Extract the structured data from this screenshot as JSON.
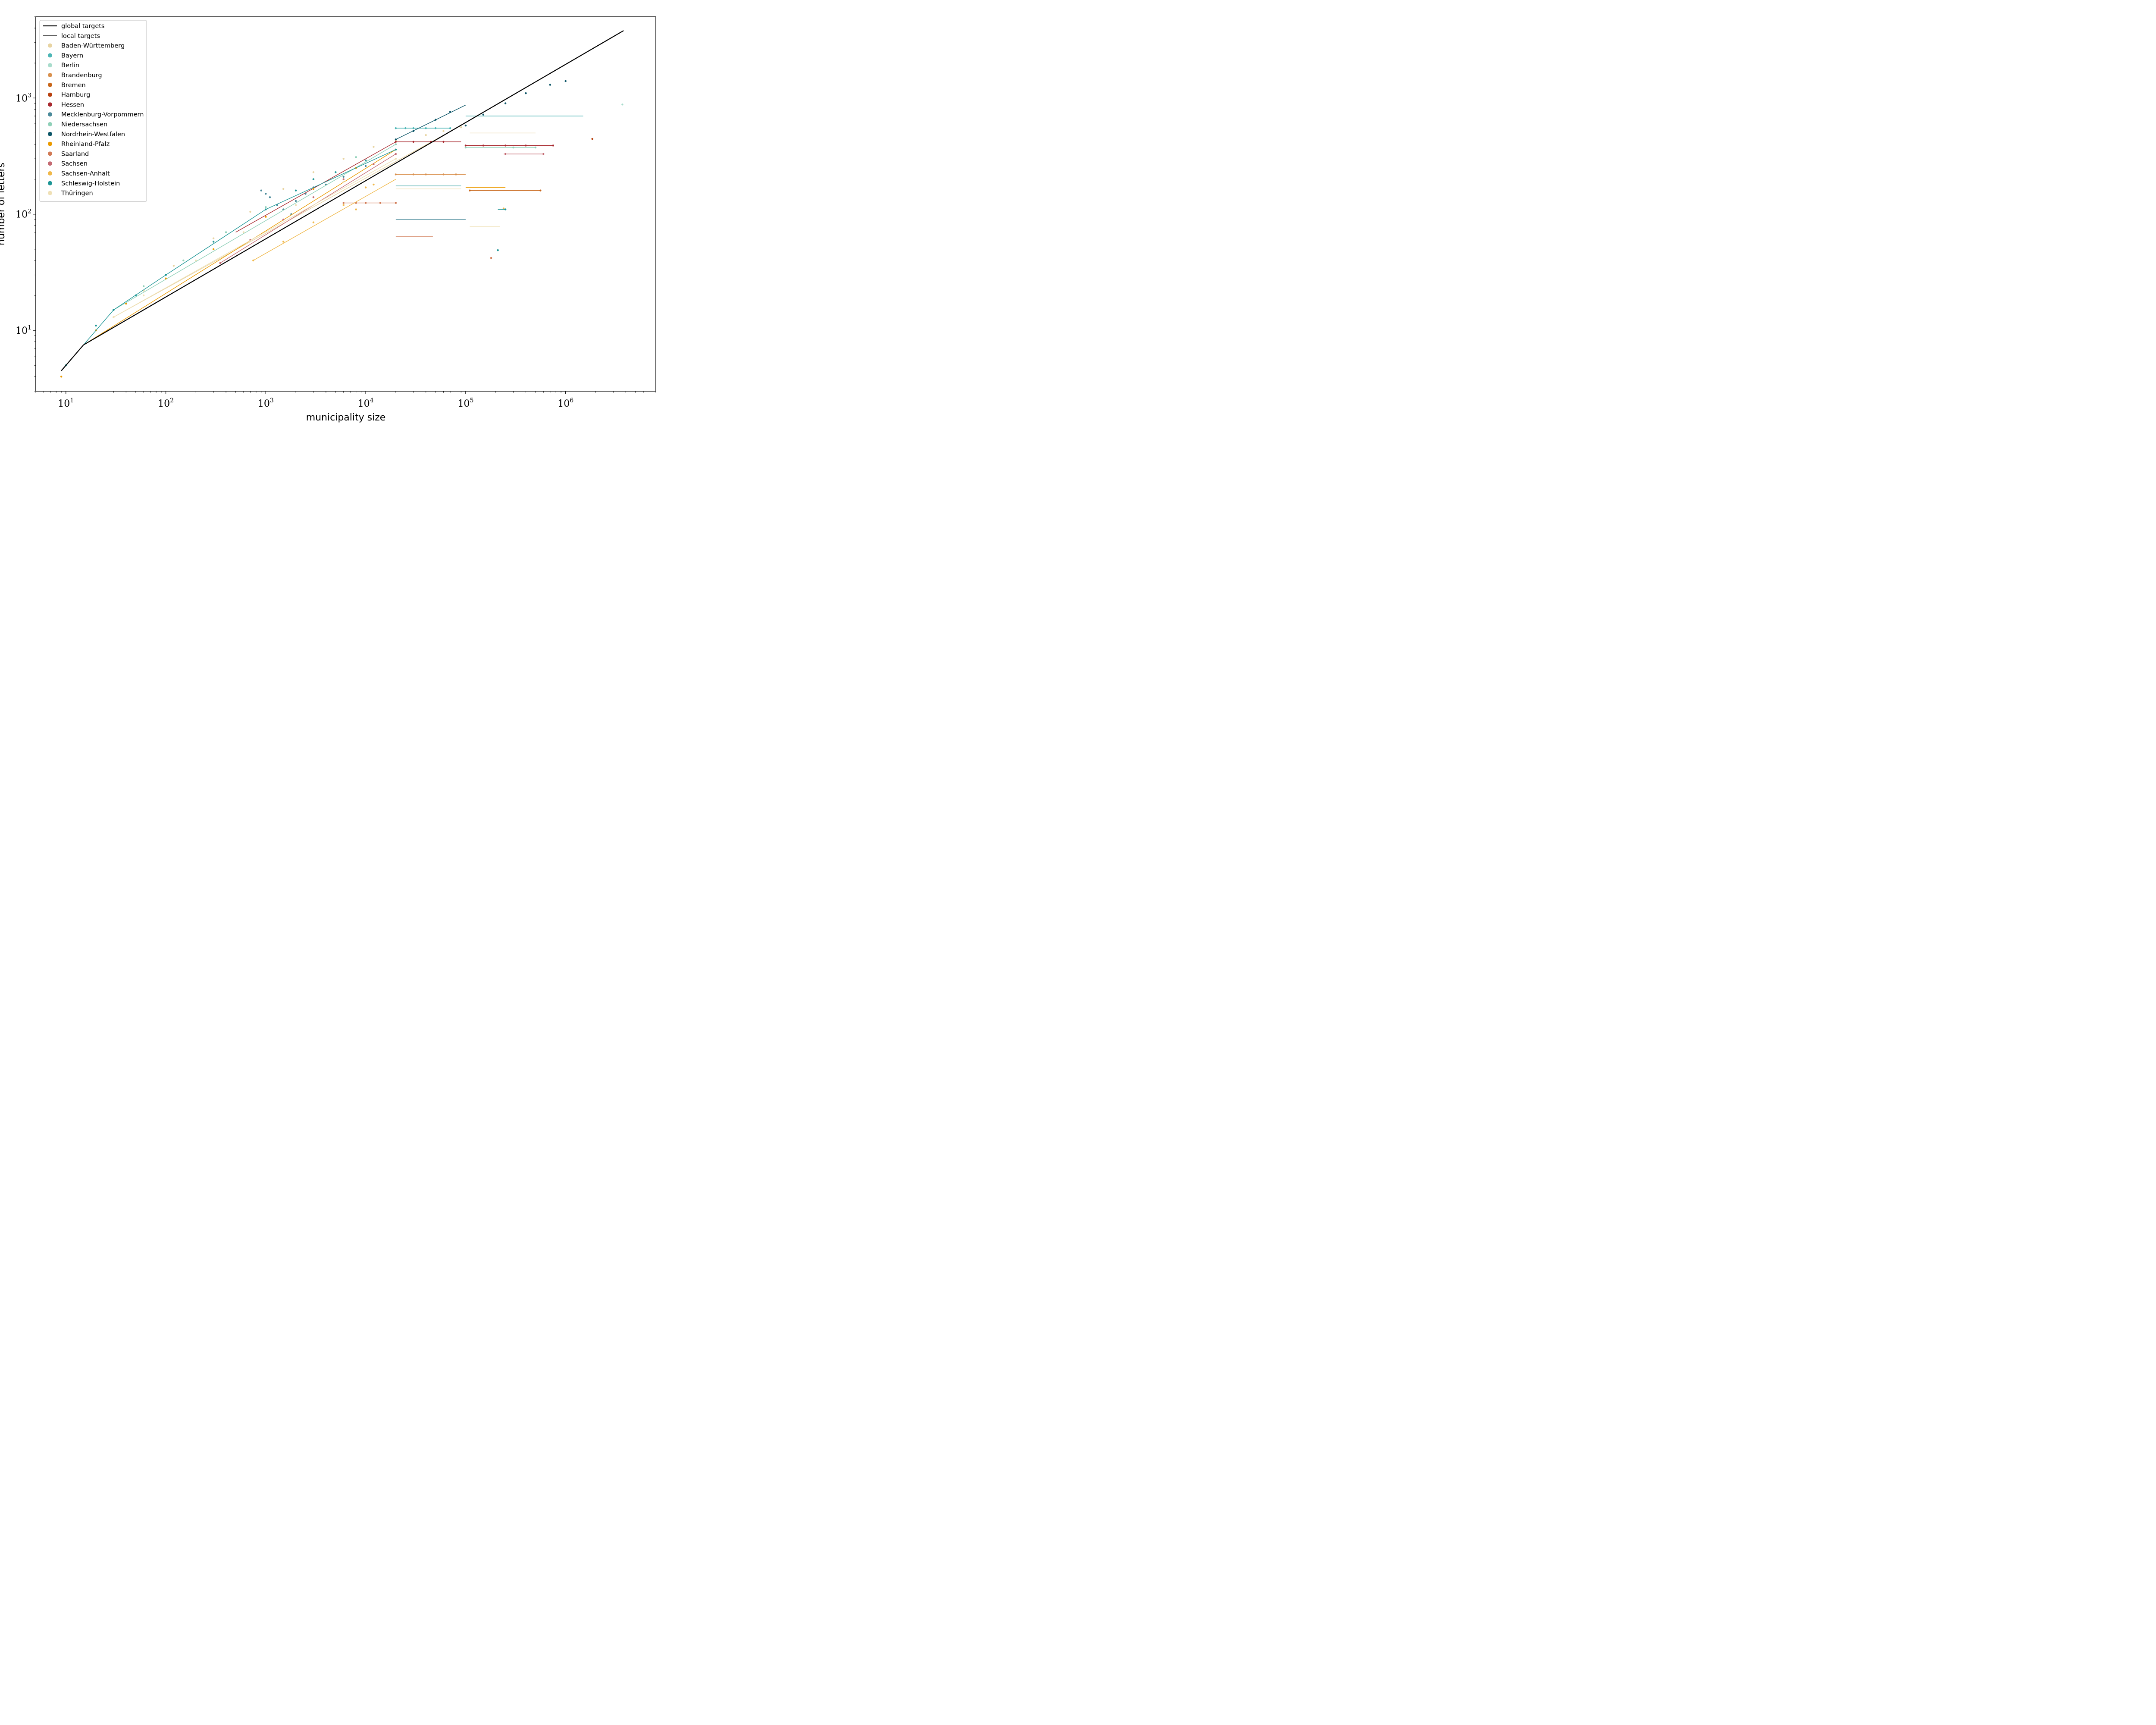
{
  "chart_data": {
    "type": "scatter",
    "title": "",
    "xlabel": "municipality size",
    "ylabel": "number of letters",
    "x_scale": "log",
    "y_scale": "log",
    "xlim": [
      5,
      8000000
    ],
    "ylim": [
      3,
      5000
    ],
    "x_ticks": [
      {
        "base": "10",
        "exp": "1",
        "value": 10
      },
      {
        "base": "10",
        "exp": "2",
        "value": 100
      },
      {
        "base": "10",
        "exp": "3",
        "value": 1000
      },
      {
        "base": "10",
        "exp": "4",
        "value": 10000
      },
      {
        "base": "10",
        "exp": "5",
        "value": 100000
      },
      {
        "base": "10",
        "exp": "6",
        "value": 1000000
      }
    ],
    "y_ticks": [
      {
        "base": "10",
        "exp": "1",
        "value": 10
      },
      {
        "base": "10",
        "exp": "2",
        "value": 100
      },
      {
        "base": "10",
        "exp": "3",
        "value": 1000
      }
    ],
    "grid": false,
    "legend_position": "top-left",
    "global_target": {
      "name": "global targets",
      "color": "#000000",
      "x": [
        9,
        15,
        3800000
      ],
      "y": [
        4.5,
        7.5,
        3800
      ]
    },
    "local_targets_label": "local targets",
    "series": [
      {
        "name": "Baden-Württemberg",
        "color": "#e8d4a2",
        "line": {
          "x": [
            30,
            90000
          ],
          "y": [
            13,
            580
          ]
        },
        "points": {
          "x": [
            30,
            60,
            120,
            300,
            700,
            1500,
            3000,
            6000,
            12000,
            20000,
            40000,
            60000,
            90000
          ],
          "y": [
            13,
            22,
            36,
            62,
            105,
            165,
            230,
            300,
            380,
            430,
            480,
            520,
            560
          ]
        },
        "steps": [
          {
            "y": 500,
            "x": [
              110000,
              500000
            ]
          }
        ]
      },
      {
        "name": "Bayern",
        "color": "#4db6b6",
        "points": {
          "x": [
            20000,
            25000,
            30000,
            40000,
            50000,
            70000
          ],
          "y": [
            550,
            550,
            550,
            550,
            550,
            550
          ]
        },
        "steps": [
          {
            "y": 550,
            "x": [
              20000,
              70000
            ]
          },
          {
            "y": 700,
            "x": [
              100000,
              1500000
            ]
          }
        ]
      },
      {
        "name": "Berlin",
        "color": "#a8dccc",
        "points": {
          "x": [
            3700000
          ],
          "y": [
            880
          ]
        }
      },
      {
        "name": "Brandenburg",
        "color": "#d9914f",
        "points": {
          "x": [
            20000,
            30000,
            40000,
            60000,
            80000
          ],
          "y": [
            220,
            220,
            220,
            220,
            220
          ]
        },
        "steps": [
          {
            "y": 220,
            "x": [
              20000,
              100000
            ]
          }
        ]
      },
      {
        "name": "Bremen",
        "color": "#c8661a",
        "points": {
          "x": [
            110000,
            560000
          ],
          "y": [
            160,
            160
          ]
        },
        "steps": [
          {
            "y": 160,
            "x": [
              110000,
              560000
            ]
          }
        ]
      },
      {
        "name": "Hamburg",
        "color": "#b8400e",
        "points": {
          "x": [
            1850000
          ],
          "y": [
            445
          ]
        }
      },
      {
        "name": "Hessen",
        "color": "#a8282e",
        "line": {
          "x": [
            500,
            20000
          ],
          "y": [
            70,
            420
          ]
        },
        "points": {
          "x": [
            20000,
            30000,
            45000,
            60000,
            100000,
            150000,
            250000,
            400000,
            750000
          ],
          "y": [
            420,
            420,
            420,
            420,
            390,
            390,
            390,
            390,
            390
          ]
        },
        "steps": [
          {
            "y": 420,
            "x": [
              20000,
              90000
            ]
          },
          {
            "y": 390,
            "x": [
              100000,
              760000
            ]
          }
        ]
      },
      {
        "name": "Mecklenburg-Vorpommern",
        "color": "#4a8a9a",
        "points": {
          "x": [
            900,
            1000,
            1100,
            1300,
            1500,
            1800,
            2000,
            2500,
            3000,
            4000,
            6000,
            10000
          ],
          "y": [
            160,
            150,
            140,
            120,
            110,
            100,
            130,
            150,
            170,
            180,
            210,
            260
          ]
        },
        "steps": [
          {
            "y": 90,
            "x": [
              20000,
              100000
            ]
          }
        ]
      },
      {
        "name": "Niedersachsen",
        "color": "#8fd0b8",
        "line": {
          "x": [
            30,
            20000
          ],
          "y": [
            15,
            400
          ]
        },
        "points": {
          "x": [
            30,
            60,
            150,
            400,
            1000,
            3000,
            8000,
            20000,
            100000,
            300000,
            500000
          ],
          "y": [
            15,
            24,
            40,
            70,
            115,
            200,
            310,
            400,
            375,
            375,
            375
          ]
        },
        "steps": [
          {
            "y": 375,
            "x": [
              100000,
              500000
            ]
          }
        ]
      },
      {
        "name": "Nordrhein-Westfalen",
        "color": "#0d5668",
        "line": {
          "x": [
            20000,
            100000
          ],
          "y": [
            440,
            870
          ]
        },
        "points": {
          "x": [
            20000,
            30000,
            50000,
            70000,
            100000,
            150000,
            250000,
            400000,
            700000,
            1000000
          ],
          "y": [
            440,
            520,
            650,
            760,
            580,
            720,
            900,
            1100,
            1300,
            1400
          ]
        },
        "steps": []
      },
      {
        "name": "Rheinland-Pfalz",
        "color": "#eb9a00",
        "line": {
          "x": [
            9,
            15,
            20000
          ],
          "y": [
            4.5,
            7.5,
            360
          ]
        },
        "points": {
          "x": [
            9,
            20,
            40,
            100,
            300,
            1000,
            3000,
            8000,
            20000
          ],
          "y": [
            4,
            10,
            17,
            28,
            50,
            95,
            165,
            250,
            360
          ]
        },
        "steps": [
          {
            "y": 170,
            "x": [
              100000,
              250000
            ]
          }
        ]
      },
      {
        "name": "Saarland",
        "color": "#d17a55",
        "points": {
          "x": [
            6000,
            8000,
            10000,
            14000,
            20000,
            180000
          ],
          "y": [
            125,
            125,
            125,
            125,
            125,
            42
          ]
        },
        "steps": [
          {
            "y": 125,
            "x": [
              6000,
              20000
            ]
          },
          {
            "y": 64,
            "x": [
              20000,
              47000
            ]
          }
        ]
      },
      {
        "name": "Sachsen",
        "color": "#c46a72",
        "line": {
          "x": [
            350,
            20000
          ],
          "y": [
            38,
            330
          ]
        },
        "points": {
          "x": [
            350,
            700,
            1500,
            3000,
            6000,
            12000,
            20000,
            250000,
            600000
          ],
          "y": [
            38,
            60,
            90,
            140,
            200,
            270,
            330,
            330,
            330
          ]
        },
        "steps": [
          {
            "y": 330,
            "x": [
              240000,
              600000
            ]
          }
        ]
      },
      {
        "name": "Sachsen-Anhalt",
        "color": "#f0b84a",
        "line": {
          "x": [
            750,
            20000
          ],
          "y": [
            40,
            200
          ]
        },
        "points": {
          "x": [
            750,
            1500,
            3000,
            6000,
            8000,
            10000,
            12000,
            240000
          ],
          "y": [
            40,
            58,
            85,
            120,
            110,
            170,
            180,
            112
          ]
        },
        "steps": []
      },
      {
        "name": "Schleswig-Holstein",
        "color": "#1e9696",
        "line": {
          "x": [
            9,
            15,
            30,
            100,
            1000,
            20000
          ],
          "y": [
            4.5,
            7.5,
            15,
            30,
            110,
            360
          ]
        },
        "points": {
          "x": [
            10,
            20,
            30,
            50,
            100,
            300,
            1000,
            2000,
            3000,
            5000,
            10000,
            20000,
            210000,
            250000
          ],
          "y": [
            5,
            11,
            15,
            20,
            30,
            58,
            110,
            160,
            200,
            230,
            290,
            360,
            49,
            110
          ]
        },
        "steps": [
          {
            "y": 175,
            "x": [
              20000,
              90000
            ]
          },
          {
            "y": 110,
            "x": [
              210000,
              250000
            ]
          }
        ]
      },
      {
        "name": "Thüringen",
        "color": "#efe0b6",
        "line": {
          "x": [
            30,
            20000
          ],
          "y": [
            13,
            300
          ]
        },
        "points": {
          "x": [
            30,
            60,
            200,
            600,
            2000,
            6000,
            20000
          ],
          "y": [
            13,
            20,
            40,
            70,
            120,
            190,
            300
          ]
        },
        "steps": [
          {
            "y": 165,
            "x": [
              20000,
              90000
            ]
          },
          {
            "y": 78,
            "x": [
              110000,
              220000
            ]
          }
        ]
      }
    ]
  }
}
